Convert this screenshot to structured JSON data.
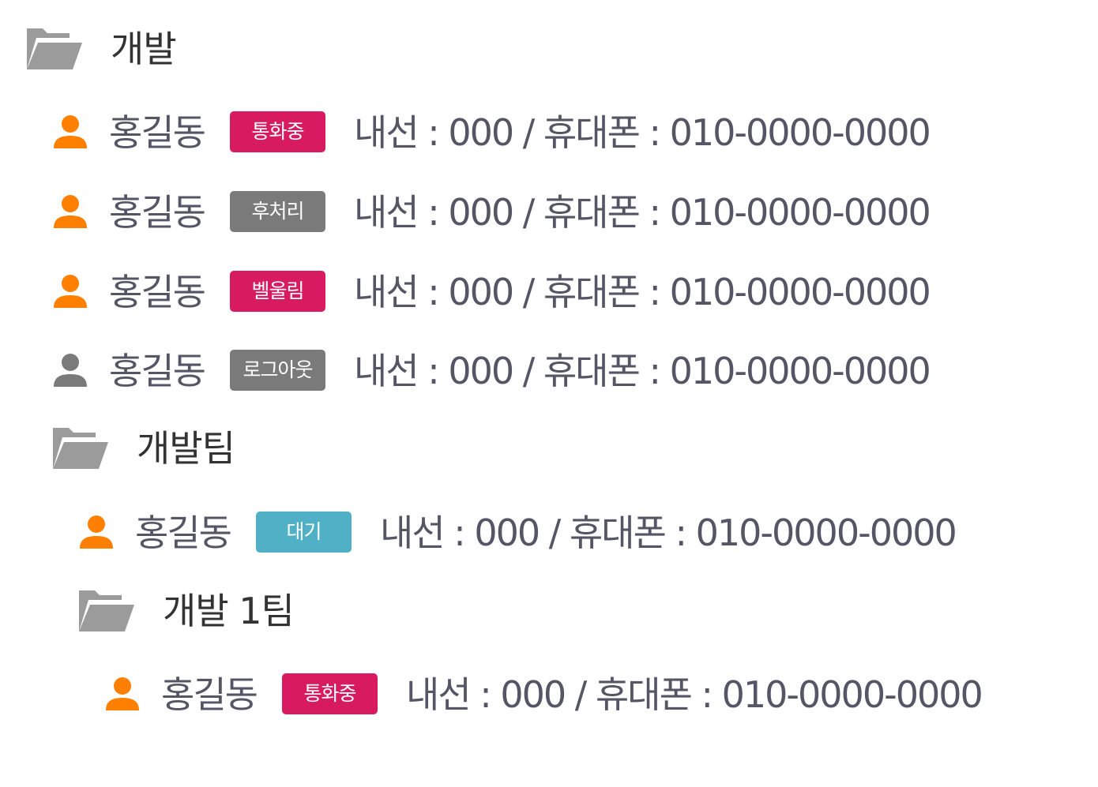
{
  "colors": {
    "folder_icon": "#9b9b9b",
    "person_active": "#ff7f00",
    "person_offline": "#7a7a7a",
    "badge_red": "#d81b60",
    "badge_gray": "#7a7a7a",
    "badge_blue": "#4fb0c6"
  },
  "tree": {
    "root_folder": {
      "icon": "folder-open-icon",
      "label": "개발",
      "members": [
        {
          "name": "홍길동",
          "icon": "person-icon",
          "icon_color": "#ff7f00",
          "status": "통화중",
          "status_color": "#d81b60",
          "contact": "내선 : 000 / 휴대폰 : 010-0000-0000"
        },
        {
          "name": "홍길동",
          "icon": "person-icon",
          "icon_color": "#ff7f00",
          "status": "후처리",
          "status_color": "#7a7a7a",
          "contact": "내선 : 000 / 휴대폰 : 010-0000-0000"
        },
        {
          "name": "홍길동",
          "icon": "person-icon",
          "icon_color": "#ff7f00",
          "status": "벨울림",
          "status_color": "#d81b60",
          "contact": "내선 : 000 / 휴대폰 : 010-0000-0000"
        },
        {
          "name": "홍길동",
          "icon": "person-icon",
          "icon_color": "#7a7a7a",
          "status": "로그아웃",
          "status_color": "#7a7a7a",
          "contact": "내선 : 000 / 휴대폰 : 010-0000-0000"
        }
      ]
    },
    "team_folder": {
      "icon": "folder-open-icon",
      "label": "개발팀",
      "members": [
        {
          "name": "홍길동",
          "icon": "person-icon",
          "icon_color": "#ff7f00",
          "status": "대기",
          "status_color": "#4fb0c6",
          "contact": "내선 : 000 / 휴대폰 : 010-0000-0000"
        }
      ]
    },
    "subteam_folder": {
      "icon": "folder-open-icon",
      "label": "개발 1팀",
      "members": [
        {
          "name": "홍길동",
          "icon": "person-icon",
          "icon_color": "#ff7f00",
          "status": "통화중",
          "status_color": "#d81b60",
          "contact": "내선 : 000 / 휴대폰 : 010-0000-0000"
        }
      ]
    }
  }
}
